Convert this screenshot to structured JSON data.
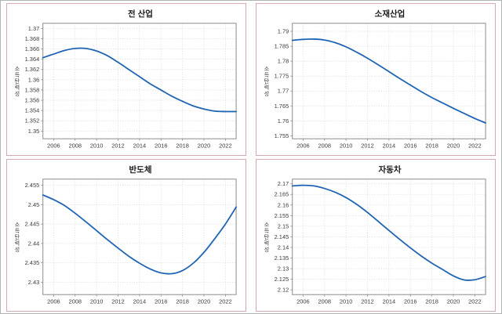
{
  "page": {
    "background": "#ffffff",
    "outer_border_color": "#b3b3b3",
    "panel_border_color": "#d6aaae",
    "grid_color": "#d2d2d2",
    "box_color": "#8c8c8c",
    "tick_label_color": "#3a3a3a",
    "title_color": "#1a1a1a",
    "accent_line_color": "#1e64b4"
  },
  "chart_data": [
    {
      "type": "line",
      "title": "전 산업",
      "ylabel": "소득탄력성",
      "line_color": "#1e64b4",
      "x": [
        2005,
        2006,
        2007,
        2008,
        2009,
        2010,
        2011,
        2012,
        2013,
        2014,
        2015,
        2016,
        2017,
        2018,
        2019,
        2020,
        2021,
        2022,
        2023
      ],
      "values": [
        1.3643,
        1.365,
        1.3657,
        1.3661,
        1.3661,
        1.3656,
        1.3647,
        1.3634,
        1.362,
        1.3606,
        1.3592,
        1.358,
        1.3568,
        1.3558,
        1.3549,
        1.3543,
        1.3539,
        1.3538,
        1.3538
      ],
      "xticks": [
        2006,
        2008,
        2010,
        2012,
        2014,
        2016,
        2018,
        2020,
        2022
      ],
      "yticks": [
        1.35,
        1.352,
        1.354,
        1.356,
        1.358,
        1.36,
        1.362,
        1.364,
        1.366,
        1.368,
        1.37
      ],
      "xlim": [
        2005,
        2023
      ],
      "ylim": [
        1.3485,
        1.371
      ],
      "grid": "dotted"
    },
    {
      "type": "line",
      "title": "소재산업",
      "ylabel": "소득탄력성",
      "line_color": "#1e64b4",
      "x": [
        2005,
        2006,
        2007,
        2008,
        2009,
        2010,
        2011,
        2012,
        2013,
        2014,
        2015,
        2016,
        2017,
        2018,
        2019,
        2020,
        2021,
        2022,
        2023
      ],
      "values": [
        1.787,
        1.7873,
        1.7874,
        1.7871,
        1.7862,
        1.7848,
        1.783,
        1.781,
        1.7788,
        1.7765,
        1.7742,
        1.772,
        1.7698,
        1.7678,
        1.766,
        1.7642,
        1.7625,
        1.7608,
        1.7593
      ],
      "xticks": [
        2006,
        2008,
        2010,
        2012,
        2014,
        2016,
        2018,
        2020,
        2022
      ],
      "yticks": [
        1.755,
        1.76,
        1.765,
        1.77,
        1.775,
        1.78,
        1.785,
        1.79
      ],
      "xlim": [
        2005,
        2023
      ],
      "ylim": [
        1.754,
        1.7927
      ],
      "grid": "dotted"
    },
    {
      "type": "line",
      "title": "반도체",
      "ylabel": "소득탄력성",
      "line_color": "#1e64b4",
      "x": [
        2005,
        2006,
        2007,
        2008,
        2009,
        2010,
        2011,
        2012,
        2013,
        2014,
        2015,
        2016,
        2017,
        2018,
        2019,
        2020,
        2021,
        2022,
        2023
      ],
      "values": [
        2.4525,
        2.4513,
        2.4498,
        2.4478,
        2.4456,
        2.4433,
        2.441,
        2.4388,
        2.4367,
        2.4349,
        2.4334,
        2.4324,
        2.4322,
        2.433,
        2.4349,
        2.4377,
        2.4412,
        2.445,
        2.4494
      ],
      "xticks": [
        2006,
        2008,
        2010,
        2012,
        2014,
        2016,
        2018,
        2020,
        2022
      ],
      "yticks": [
        2.43,
        2.435,
        2.44,
        2.445,
        2.45,
        2.455
      ],
      "xlim": [
        2005,
        2023
      ],
      "ylim": [
        2.4268,
        2.4566
      ],
      "grid": "dotted"
    },
    {
      "type": "line",
      "title": "자동차",
      "ylabel": "소득탄력성",
      "line_color": "#1e64b4",
      "x": [
        2005,
        2006,
        2007,
        2008,
        2009,
        2010,
        2011,
        2012,
        2013,
        2014,
        2015,
        2016,
        2017,
        2018,
        2019,
        2020,
        2021,
        2022,
        2023
      ],
      "values": [
        2.169,
        2.1693,
        2.169,
        2.1678,
        2.166,
        2.1635,
        2.1603,
        2.1565,
        2.1523,
        2.148,
        2.1438,
        2.1398,
        2.136,
        2.1326,
        2.1296,
        2.1266,
        2.1247,
        2.1248,
        2.1263
      ],
      "xticks": [
        2006,
        2008,
        2010,
        2012,
        2014,
        2016,
        2018,
        2020,
        2022
      ],
      "yticks": [
        2.12,
        2.125,
        2.13,
        2.135,
        2.14,
        2.145,
        2.15,
        2.155,
        2.16,
        2.165,
        2.17
      ],
      "xlim": [
        2005,
        2023
      ],
      "ylim": [
        2.1178,
        2.1722
      ],
      "grid": "dotted"
    }
  ]
}
